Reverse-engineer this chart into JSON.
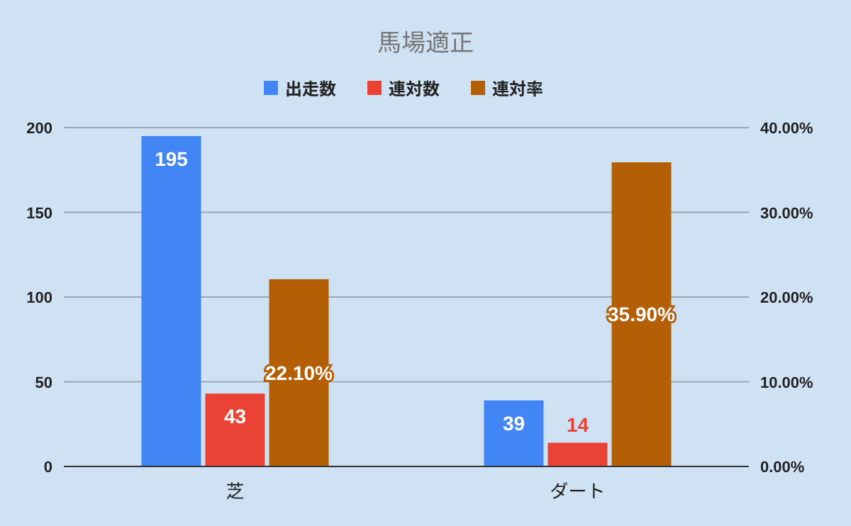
{
  "chart_data": {
    "type": "bar",
    "title": "馬場適正",
    "categories": [
      "芝",
      "ダート"
    ],
    "series": [
      {
        "name": "出走数",
        "color": "#4285f4",
        "values": [
          195,
          39
        ],
        "value_labels": [
          "195",
          "39"
        ]
      },
      {
        "name": "連対数",
        "color": "#ea4335",
        "values": [
          43,
          14
        ],
        "value_labels": [
          "43",
          "14"
        ]
      },
      {
        "name": "連対率",
        "color": "#b45f06",
        "values": [
          22.1,
          35.9
        ],
        "axis": "y2",
        "value_labels": [
          "22.10%",
          "35.90%"
        ]
      }
    ],
    "ylim": [
      0,
      200
    ],
    "yticks": [
      0,
      50,
      100,
      150,
      200
    ],
    "y2lim": [
      0,
      40
    ],
    "y2ticks": [
      {
        "value": 0,
        "label": "0.00%"
      },
      {
        "value": 10,
        "label": "10.00%"
      },
      {
        "value": 20,
        "label": "20.00%"
      },
      {
        "value": 30,
        "label": "30.00%"
      },
      {
        "value": 40,
        "label": "40.00%"
      }
    ],
    "grid": "y",
    "legend": "top"
  }
}
